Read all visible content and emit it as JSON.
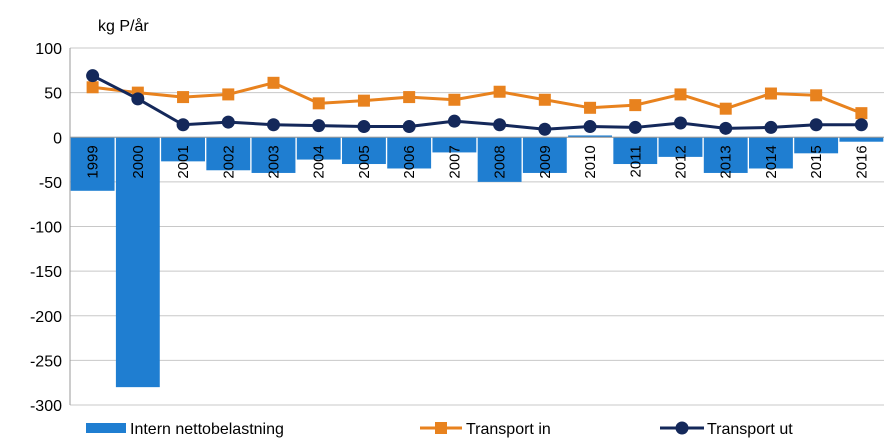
{
  "chart_data": {
    "type": "bar+line",
    "unit_label": "kg P/år",
    "categories": [
      "1999",
      "2000",
      "2001",
      "2002",
      "2003",
      "2004",
      "2005",
      "2006",
      "2007",
      "2008",
      "2009",
      "2010",
      "2011",
      "2012",
      "2013",
      "2014",
      "2015",
      "2016"
    ],
    "series": [
      {
        "name": "Intern nettobelastning",
        "kind": "bar",
        "color": "#1f7ed1",
        "values": [
          -60,
          -280,
          -27,
          -37,
          -40,
          -25,
          -30,
          -35,
          -17,
          -50,
          -40,
          2,
          -30,
          -22,
          -40,
          -35,
          -18,
          -5
        ]
      },
      {
        "name": "Transport in",
        "kind": "line",
        "marker": "square",
        "color": "#e8821e",
        "values": [
          56,
          50,
          45,
          48,
          61,
          38,
          41,
          45,
          42,
          51,
          42,
          33,
          36,
          48,
          32,
          49,
          47,
          27
        ]
      },
      {
        "name": "Transport ut",
        "kind": "line",
        "marker": "circle",
        "color": "#14285a",
        "values": [
          69,
          43,
          14,
          17,
          14,
          13,
          12,
          12,
          18,
          14,
          9,
          12,
          11,
          16,
          10,
          11,
          14,
          14
        ]
      }
    ],
    "yticks": [
      "100",
      "50",
      "0",
      "-50",
      "-100",
      "-150",
      "-200",
      "-250",
      "-300"
    ],
    "ylim": [
      -300,
      100
    ],
    "grid": true,
    "legend": "bottom"
  }
}
